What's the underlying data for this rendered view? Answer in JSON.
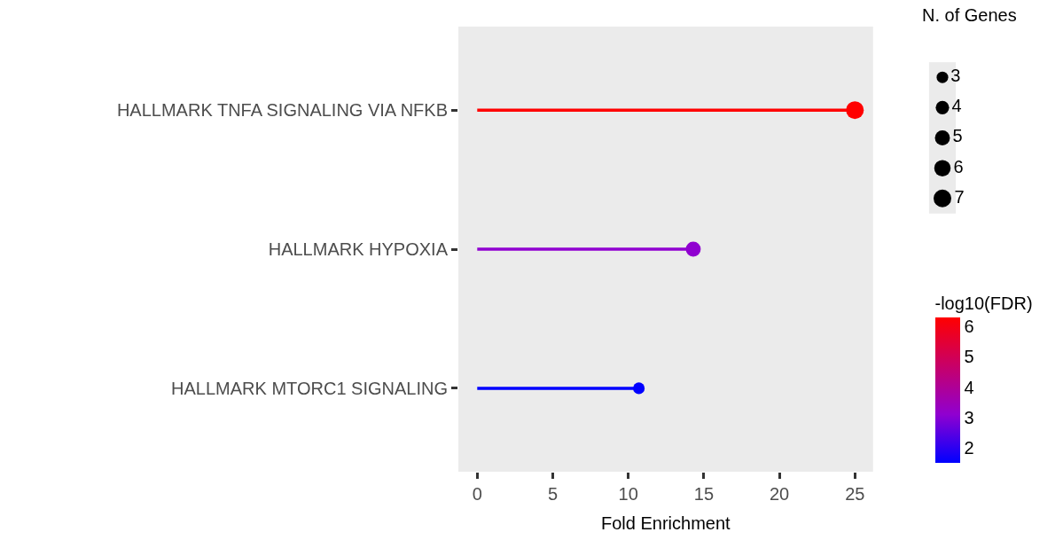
{
  "chart_data": {
    "type": "lollipop",
    "orientation": "horizontal",
    "categories": [
      "HALLMARK TNFA SIGNALING VIA NFKB",
      "HALLMARK HYPOXIA",
      "HALLMARK MTORC1 SIGNALING"
    ],
    "values": [
      25.0,
      14.3,
      10.7
    ],
    "colors": [
      "#ff0000",
      "#9000d0",
      "#0000ff"
    ],
    "sizes": [
      7,
      5,
      3
    ],
    "size_legend": [
      3,
      4,
      5,
      6,
      7
    ],
    "legend_title": "N. of Genes",
    "cvalues": [
      6.3,
      3.1,
      1.5
    ],
    "clabel": "-log10(FDR)",
    "clim": [
      1.5,
      6.3
    ],
    "cticks": [
      2,
      3,
      4,
      5,
      6
    ],
    "xlabel": "Fold Enrichment",
    "xlim": [
      -1.25,
      26.2
    ],
    "xticks": [
      0,
      5,
      10,
      15,
      20,
      25
    ],
    "grid": false,
    "marker": "circle"
  }
}
